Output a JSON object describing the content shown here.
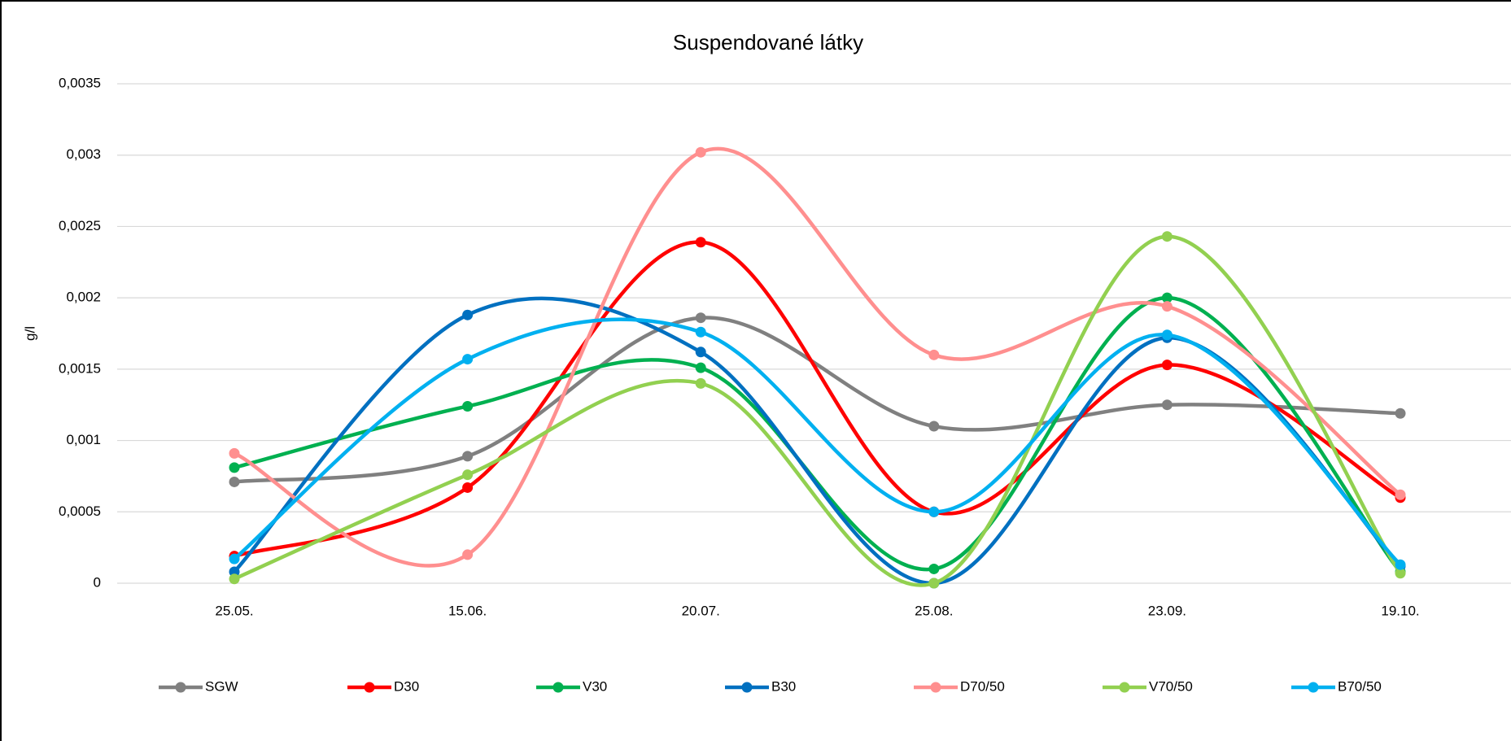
{
  "chart_data": {
    "type": "line",
    "title": "Suspendované látky",
    "y_label": "g/l",
    "categories": [
      "25.05.",
      "15.06.",
      "20.07.",
      "25.08.",
      "23.09.",
      "19.10."
    ],
    "ylim": [
      0,
      0.0035
    ],
    "yticks": [
      0,
      {
        "value": 0.0005,
        "label": "0,0005"
      },
      {
        "value": 0.001,
        "label": "0,001"
      },
      {
        "value": 0.0015,
        "label": "0,0015"
      },
      {
        "value": 0.002,
        "label": "0,002"
      },
      {
        "value": 0.0025,
        "label": "0,0025"
      },
      {
        "value": 0.003,
        "label": "0,003"
      },
      {
        "value": 0.0035,
        "label": "0,0035"
      }
    ],
    "grid": true,
    "smooth": true,
    "legend": "bottom",
    "series": [
      {
        "name": "SGW",
        "color": "#808080",
        "values": [
          0.00071,
          0.00089,
          0.00186,
          0.0011,
          0.00125,
          0.00119
        ]
      },
      {
        "name": "D30",
        "color": "#ff0000",
        "values": [
          0.00019,
          0.00067,
          0.00239,
          0.0005,
          0.00153,
          0.0006
        ]
      },
      {
        "name": "V30",
        "color": "#00b050",
        "values": [
          0.00081,
          0.00124,
          0.00151,
          0.0001,
          0.002,
          8e-05
        ]
      },
      {
        "name": "B30",
        "color": "#0070c0",
        "values": [
          8e-05,
          0.00188,
          0.00162,
          0.0,
          0.00172,
          0.00012
        ]
      },
      {
        "name": "D70/50",
        "color": "#ff8f8f",
        "values": [
          0.00091,
          0.0002,
          0.00302,
          0.0016,
          0.00194,
          0.00062
        ]
      },
      {
        "name": "V70/50",
        "color": "#92d050",
        "values": [
          3e-05,
          0.00076,
          0.0014,
          0.0,
          0.00243,
          7e-05
        ]
      },
      {
        "name": "B70/50",
        "color": "#00b0f0",
        "values": [
          0.00017,
          0.00157,
          0.00176,
          0.0005,
          0.00174,
          0.00013
        ]
      }
    ]
  }
}
